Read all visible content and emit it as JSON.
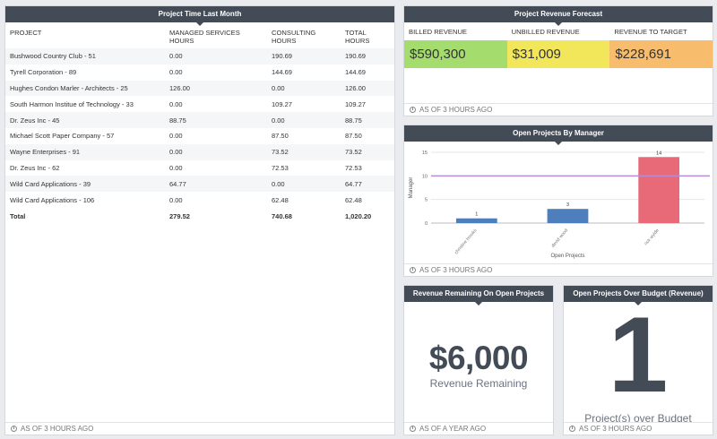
{
  "time_table": {
    "title": "Project Time Last Month",
    "headers": [
      "PROJECT",
      "MANAGED SERVICES HOURS",
      "CONSULTING HOURS",
      "TOTAL HOURS"
    ],
    "rows": [
      [
        "Bushwood Country Club - 51",
        "0.00",
        "190.69",
        "190.69"
      ],
      [
        "Tyrell Corporation - 89",
        "0.00",
        "144.69",
        "144.69"
      ],
      [
        "Hughes Condon Marler - Architects - 25",
        "126.00",
        "0.00",
        "126.00"
      ],
      [
        "South Harmon Institue of Technology - 33",
        "0.00",
        "109.27",
        "109.27"
      ],
      [
        "Dr. Zeus Inc - 45",
        "88.75",
        "0.00",
        "88.75"
      ],
      [
        "Michael Scott Paper Company - 57",
        "0.00",
        "87.50",
        "87.50"
      ],
      [
        "Wayne Enterprises - 91",
        "0.00",
        "73.52",
        "73.52"
      ],
      [
        "Dr. Zeus Inc - 62",
        "0.00",
        "72.53",
        "72.53"
      ],
      [
        "Wild Card Applications - 39",
        "64.77",
        "0.00",
        "64.77"
      ],
      [
        "Wild Card Applications - 106",
        "0.00",
        "62.48",
        "62.48"
      ]
    ],
    "total": [
      "Total",
      "279.52",
      "740.68",
      "1,020.20"
    ],
    "footer": "AS OF 3 HOURS AGO"
  },
  "forecast": {
    "title": "Project Revenue Forecast",
    "kpis": [
      {
        "label": "BILLED REVENUE",
        "value": "$590,300",
        "color": "#a4dd6e"
      },
      {
        "label": "UNBILLED REVENUE",
        "value": "$31,009",
        "color": "#f2e65a"
      },
      {
        "label": "REVENUE TO TARGET",
        "value": "$228,691",
        "color": "#f7bd6c"
      }
    ],
    "footer": "AS OF 3 HOURS AGO"
  },
  "managers": {
    "title": "Open Projects By Manager",
    "footer": "AS OF 3 HOURS AGO"
  },
  "chart_data": {
    "type": "bar",
    "categories": [
      "christine brooks",
      "david wood",
      "rick wylde"
    ],
    "values": [
      1,
      3,
      14
    ],
    "bar_colors": [
      "#4d7fbd",
      "#4d7fbd",
      "#e86a78"
    ],
    "target_line": 10,
    "target_color": "#b98ad6",
    "ylim": [
      0,
      15
    ],
    "yticks": [
      0,
      5,
      10,
      15
    ],
    "xlabel": "Open Projects",
    "ylabel": "Manager",
    "grid": true
  },
  "remaining": {
    "title": "Revenue Remaining On Open Projects",
    "value": "$6,000",
    "label": "Revenue Remaining",
    "footer": "AS OF A YEAR AGO"
  },
  "budget": {
    "title": "Open Projects Over Budget (Revenue)",
    "value": "1",
    "label": "Project(s) over Budget",
    "footer": "AS OF 3 HOURS AGO"
  }
}
